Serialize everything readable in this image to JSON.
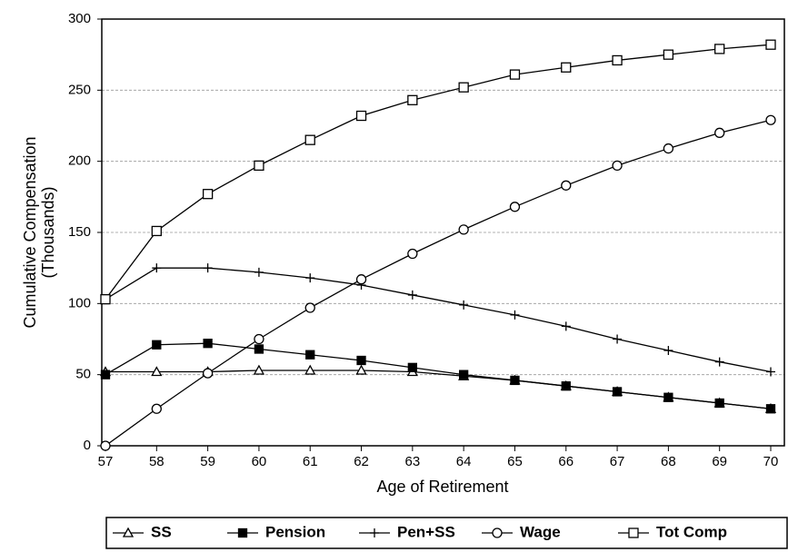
{
  "chart_data": {
    "type": "line",
    "xlabel": "Age of Retirement",
    "ylabel": [
      "Cumulative Compensation",
      "(Thousands)"
    ],
    "categories": [
      "57",
      "58",
      "59",
      "60",
      "61",
      "62",
      "63",
      "64",
      "65",
      "66",
      "67",
      "68",
      "69",
      "70"
    ],
    "ylim": [
      0,
      300
    ],
    "yticks": [
      0,
      50,
      100,
      150,
      200,
      250,
      300
    ],
    "grid": true,
    "series": [
      {
        "name": "SS",
        "color": "#000000",
        "marker": "triangle",
        "values": [
          52,
          52,
          52,
          53,
          53,
          53,
          52,
          49,
          46,
          42,
          38,
          34,
          30,
          26
        ]
      },
      {
        "name": "Pension",
        "color": "#000000",
        "marker": "square-filled",
        "values": [
          50,
          71,
          72,
          68,
          64,
          60,
          55,
          50,
          46,
          42,
          38,
          34,
          30,
          26
        ]
      },
      {
        "name": "Pen+SS",
        "color": "#000000",
        "marker": "plus",
        "values": [
          103,
          125,
          125,
          122,
          118,
          113,
          106,
          99,
          92,
          84,
          75,
          67,
          59,
          52
        ]
      },
      {
        "name": "Wage",
        "color": "#000000",
        "marker": "circle",
        "values": [
          0,
          26,
          51,
          75,
          97,
          117,
          135,
          152,
          168,
          183,
          197,
          209,
          220,
          229
        ]
      },
      {
        "name": "Tot Comp",
        "color": "#000000",
        "marker": "square",
        "values": [
          103,
          151,
          177,
          197,
          215,
          232,
          243,
          252,
          261,
          266,
          271,
          275,
          279,
          282
        ]
      }
    ]
  }
}
